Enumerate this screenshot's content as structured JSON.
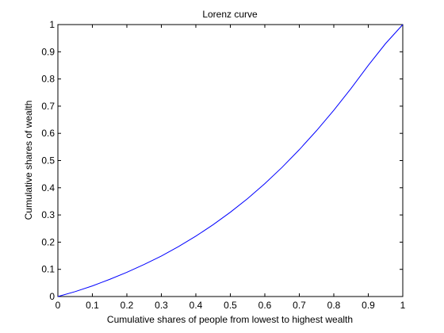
{
  "chart_data": {
    "type": "line",
    "title": "Lorenz curve",
    "xlabel": "Cumulative shares of people from lowest to highest wealth",
    "ylabel": "Cumulative shares of wealth",
    "xlim": [
      0,
      1
    ],
    "ylim": [
      0,
      1
    ],
    "xticks": [
      "0",
      "0.1",
      "0.2",
      "0.3",
      "0.4",
      "0.5",
      "0.6",
      "0.7",
      "0.8",
      "0.9",
      "1"
    ],
    "yticks": [
      "0",
      "0.1",
      "0.2",
      "0.3",
      "0.4",
      "0.5",
      "0.6",
      "0.7",
      "0.8",
      "0.9",
      "1"
    ],
    "grid": false,
    "line_color": "#0000ff",
    "series": [
      {
        "x": [
          0,
          0.05,
          0.1,
          0.15,
          0.2,
          0.25,
          0.3,
          0.35,
          0.4,
          0.45,
          0.5,
          0.55,
          0.6,
          0.65,
          0.7,
          0.75,
          0.8,
          0.85,
          0.9,
          0.95,
          1
        ],
        "y": [
          0,
          0.018,
          0.039,
          0.063,
          0.089,
          0.118,
          0.149,
          0.184,
          0.222,
          0.264,
          0.31,
          0.36,
          0.415,
          0.475,
          0.54,
          0.61,
          0.685,
          0.765,
          0.85,
          0.93,
          1
        ]
      }
    ]
  }
}
